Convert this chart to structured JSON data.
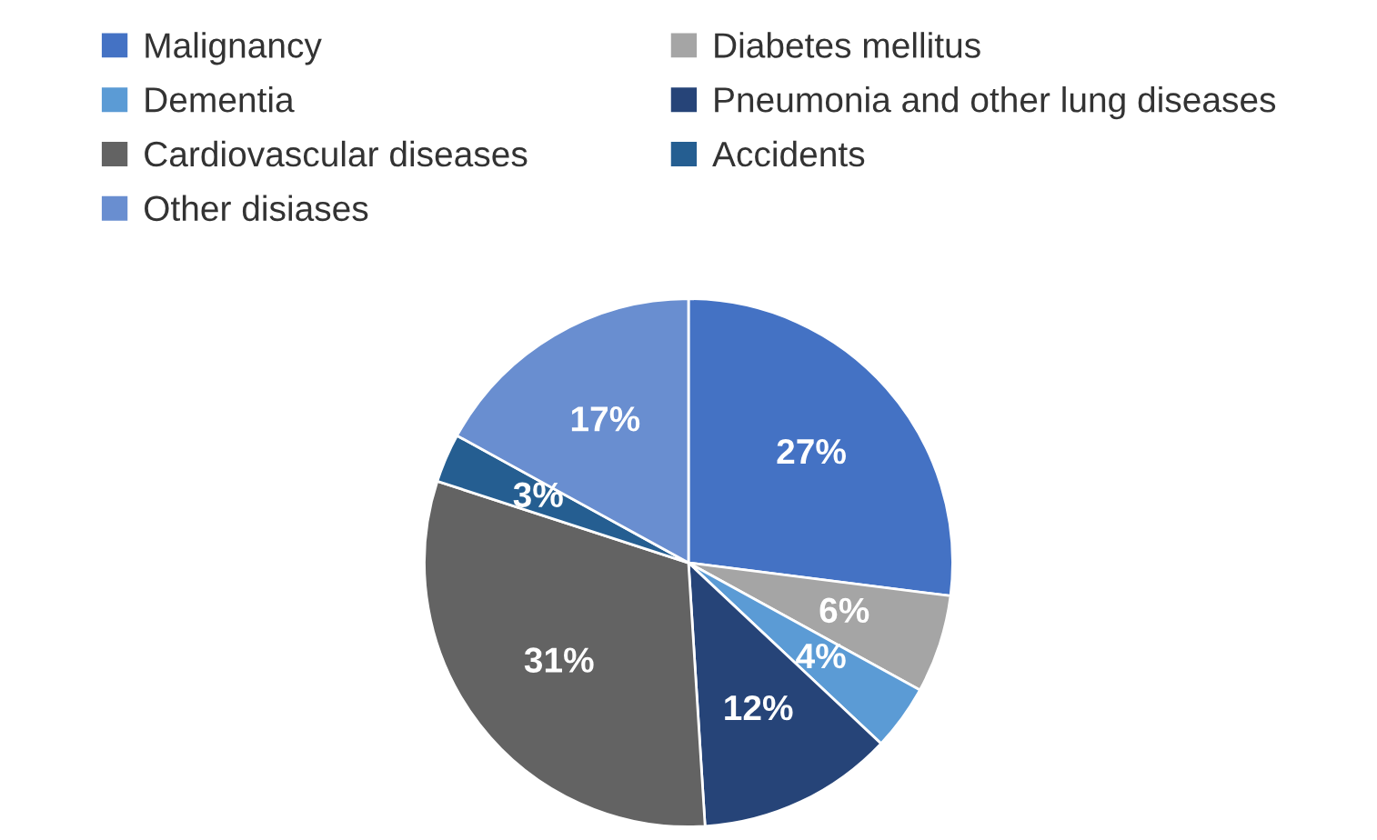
{
  "chart_data": {
    "type": "pie",
    "categories": [
      "Malignancy",
      "Diabetes mellitus",
      "Dementia",
      "Pneumonia and other lung diseases",
      "Cardiovascular diseases",
      "Accidents",
      "Other disiases"
    ],
    "values": [
      27,
      6,
      4,
      12,
      31,
      3,
      17
    ],
    "colors": [
      "#4472c4",
      "#a5a5a5",
      "#5b9bd5",
      "#264478",
      "#636363",
      "#255e91",
      "#698ed0"
    ],
    "value_labels": [
      "27%",
      "6%",
      "4%",
      "12%",
      "31%",
      "3%",
      "17%"
    ],
    "legend": "top"
  }
}
